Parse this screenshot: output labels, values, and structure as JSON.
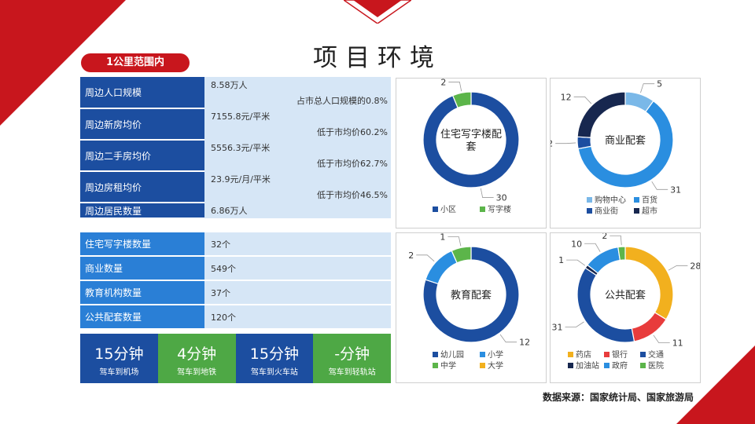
{
  "page": {
    "title": "项目环境",
    "tag": "1公里范围内",
    "source": "数据来源：国家统计局、国家旅游局"
  },
  "table1": [
    {
      "label": "周边人口规模",
      "value": "8.58万人",
      "note": "占市总人口规模的0.8%"
    },
    {
      "label": "周边新房均价",
      "value": "7155.8元/平米",
      "note": "低于市均价60.2%"
    },
    {
      "label": "周边二手房均价",
      "value": "5556.3元/平米",
      "note": "低于市均价62.7%"
    },
    {
      "label": "周边房租均价",
      "value": "23.9元/月/平米",
      "note": "低于市均价46.5%"
    },
    {
      "label": "周边居民数量",
      "value": "6.86万人"
    }
  ],
  "table2": [
    {
      "label": "住宅写字楼数量",
      "value": "32个"
    },
    {
      "label": "商业数量",
      "value": "549个"
    },
    {
      "label": "教育机构数量",
      "value": "37个"
    },
    {
      "label": "公共配套数量",
      "value": "120个"
    }
  ],
  "tiles": [
    {
      "big": "15分钟",
      "small": "驾车到机场",
      "color": "#1c4ea0"
    },
    {
      "big": "4分钟",
      "small": "驾车到地铁",
      "color": "#4ea845"
    },
    {
      "big": "15分钟",
      "small": "驾车到火车站",
      "color": "#1c4ea0"
    },
    {
      "big": "-分钟",
      "small": "驾车到轻轨站",
      "color": "#4ea845"
    }
  ],
  "chart_data": [
    {
      "type": "pie",
      "title": "住宅写字楼配套",
      "slices": [
        {
          "name": "小区",
          "value": 30,
          "color": "#1c4ea0"
        },
        {
          "name": "写字楼",
          "value": 2,
          "color": "#5cb54a"
        }
      ]
    },
    {
      "type": "pie",
      "title": "商业配套",
      "slices": [
        {
          "name": "购物中心",
          "value": 5,
          "color": "#7ab8e8"
        },
        {
          "name": "百货",
          "value": 31,
          "color": "#2a8ee0"
        },
        {
          "name": "商业街",
          "value": 2,
          "color": "#1c4ea0"
        },
        {
          "name": "超市",
          "value": 12,
          "color": "#17274f"
        }
      ]
    },
    {
      "type": "pie",
      "title": "教育配套",
      "slices": [
        {
          "name": "幼儿园",
          "value": 12,
          "color": "#1c4ea0"
        },
        {
          "name": "小学",
          "value": 2,
          "color": "#2a8ee0"
        },
        {
          "name": "中学",
          "value": 1,
          "color": "#5cb54a"
        },
        {
          "name": "大学",
          "value": 0,
          "color": "#f2b01e"
        }
      ]
    },
    {
      "type": "pie",
      "title": "公共配套",
      "slices": [
        {
          "name": "药店",
          "value": 28,
          "color": "#f2b01e"
        },
        {
          "name": "银行",
          "value": 11,
          "color": "#e83c3c"
        },
        {
          "name": "交通",
          "value": 31,
          "color": "#1c4ea0"
        },
        {
          "name": "加油站",
          "value": 1,
          "color": "#17274f"
        },
        {
          "name": "政府",
          "value": 10,
          "color": "#2a8ee0"
        },
        {
          "name": "医院",
          "value": 2,
          "color": "#5cb54a"
        }
      ]
    }
  ]
}
